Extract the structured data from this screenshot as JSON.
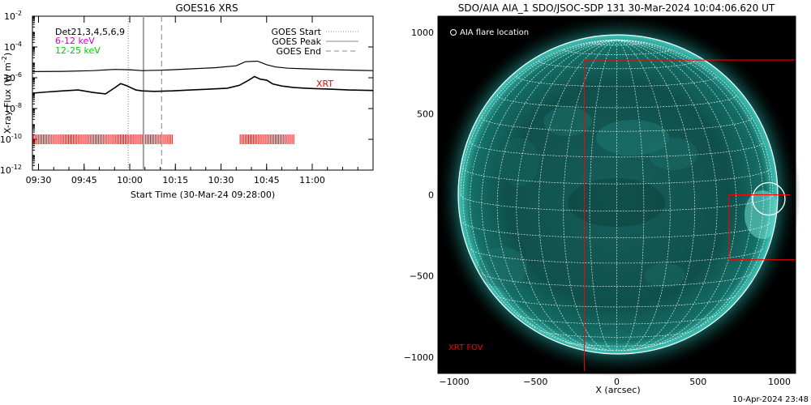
{
  "goes_panel": {
    "title": "GOES16 XRS",
    "ylabel": "X-ray Flux (W m",
    "ylabel_sup": "-2",
    "ylabel_close": ")",
    "xlabel": "Start Time (30-Mar-24 09:28:00)",
    "y_exponents": [
      "-2",
      "-4",
      "-6",
      "-8",
      "-10",
      "-12"
    ],
    "y_base": "10",
    "x_ticks": [
      "09:30",
      "09:45",
      "10:00",
      "10:15",
      "10:30",
      "10:45",
      "11:00"
    ],
    "legend_left": [
      {
        "text": "Det21,3,4,5,6,9",
        "color": "#000000"
      },
      {
        "text": "6-12 keV",
        "color": "#cc00cc"
      },
      {
        "text": "12-25 keV",
        "color": "#00cc00"
      }
    ],
    "legend_right": [
      {
        "text": "GOES Start",
        "style": "dotted"
      },
      {
        "text": "GOES Peak",
        "style": "solid"
      },
      {
        "text": "GOES End",
        "style": "dashed"
      }
    ],
    "xrt_label": "XRT",
    "colors": {
      "rhessi_bars": "#ff0000",
      "markers": "#a0a0a0",
      "xrt": "#ff0000"
    }
  },
  "aia_panel": {
    "title": "SDO/AIA AIA_1 SDO/JSOC-SDP 131 30-Mar-2024 10:04:06.620 UT",
    "flare_legend": "AIA flare location",
    "xlabel": "X (arcsec)",
    "x_ticks": [
      "−1000",
      "−500",
      "0",
      "500",
      "1000"
    ],
    "y_ticks": [
      "1000",
      "500",
      "0",
      "−500",
      "−1000"
    ],
    "xrt_fov_label": "XRT FOV",
    "colors": {
      "disk": "#0e4a48",
      "grid": "#ffffff",
      "fov": "#ff0000",
      "corona": "#2bb3a8"
    }
  },
  "footer_timestamp": "10-Apr-2024 23:48",
  "chart_data": [
    {
      "type": "line",
      "title": "GOES16 XRS",
      "xlabel": "Start Time (30-Mar-24 09:28:00)",
      "ylabel": "X-ray Flux (W m^-2)",
      "yscale": "log",
      "ylim": [
        1e-12,
        0.01
      ],
      "x_unit": "minutes after 09:28:00",
      "xlim": [
        0,
        112
      ],
      "grid": false,
      "legend": "top-right",
      "series": [
        {
          "name": "",
          "x": [
            0,
            10,
            20,
            27,
            32,
            36,
            42,
            46,
            52,
            60,
            67,
            70,
            74,
            77,
            80,
            84,
            90,
            96,
            102,
            108,
            112
          ],
          "y": [
            2.5e-06,
            2.6e-06,
            2.9e-06,
            3.5e-06,
            3.3e-06,
            2.9e-06,
            3.1e-06,
            3.3e-06,
            3.8e-06,
            4.5e-06,
            6e-06,
            1.1e-05,
            1.2e-05,
            7e-06,
            5e-06,
            4.2e-06,
            3.8e-06,
            3.5e-06,
            3.2e-06,
            3e-06,
            2.9e-06
          ]
        },
        {
          "name": "",
          "x": [
            0,
            5,
            10,
            15,
            20,
            24,
            27,
            29,
            31,
            34,
            36,
            40,
            46,
            52,
            58,
            64,
            68,
            71,
            73,
            75,
            77,
            79,
            82,
            86,
            92,
            98,
            104,
            112
          ],
          "y": [
            1e-07,
            1.2e-07,
            1.4e-07,
            1.6e-07,
            1.1e-07,
            9e-08,
            2.2e-07,
            4.2e-07,
            3e-07,
            1.6e-07,
            1.4e-07,
            1.3e-07,
            1.4e-07,
            1.6e-07,
            1.8e-07,
            2.1e-07,
            3.2e-07,
            6.8e-07,
            1.2e-06,
            8e-07,
            7e-07,
            4e-07,
            2.9e-07,
            2.3e-07,
            2e-07,
            1.8e-07,
            1.6e-07,
            1.5e-07
          ]
        }
      ],
      "vertical_markers": [
        {
          "label": "GOES Start",
          "x": 31.5,
          "style": "dotted"
        },
        {
          "label": "GOES Peak",
          "x": 36.5,
          "style": "solid"
        },
        {
          "label": "GOES End",
          "x": 42.5,
          "style": "dashed"
        }
      ],
      "observation_intervals": [
        {
          "start": 0,
          "end": 46,
          "y": 1e-10,
          "color": "#ff0000"
        },
        {
          "start": 68,
          "end": 86,
          "y": 1e-10,
          "color": "#ff0000"
        }
      ]
    },
    {
      "type": "scatter",
      "title": "SDO/AIA AIA_1 SDO/JSOC-SDP 131 30-Mar-2024 10:04:06.620 UT",
      "xlabel": "X (arcsec)",
      "ylabel": "",
      "xlim": [
        -1100,
        1100
      ],
      "ylim": [
        -1100,
        1100
      ],
      "solar_radius_arcsec": 960,
      "flare_location": {
        "x": 935,
        "y": -25,
        "radius": 100
      },
      "fov_boxes": [
        {
          "label": "XRT FOV",
          "x0": -200,
          "y0": -1100,
          "x1": 1100,
          "y1": 830
        },
        {
          "x0": 690,
          "y0": -400,
          "x1": 1100,
          "y1": 0
        }
      ]
    }
  ]
}
